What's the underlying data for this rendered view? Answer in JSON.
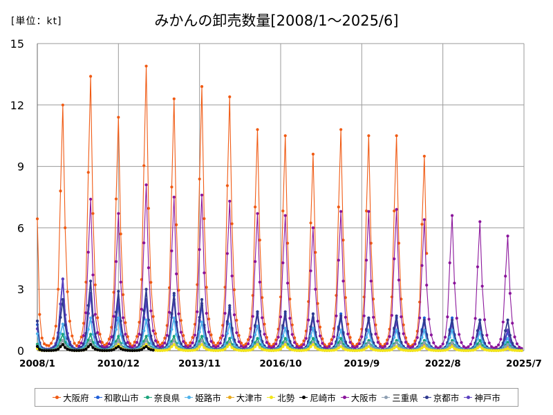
{
  "header": {
    "unit_label": "[単位：kt]",
    "title": "みかんの卸売数量[2008/1～2025/6]"
  },
  "chart_data": {
    "type": "line",
    "title": "みかんの卸売数量[2008/1～2025/6]",
    "ylabel": "[単位：kt]",
    "xlabel": "",
    "ylim": [
      0,
      15
    ],
    "yticks": [
      "0",
      "3",
      "6",
      "9",
      "12",
      "15"
    ],
    "xlim": [
      "2008/1",
      "2025/7"
    ],
    "xticks": [
      "2008/1",
      "2010/12",
      "2013/11",
      "2016/10",
      "2019/9",
      "2022/8",
      "2025/7"
    ],
    "grid": true,
    "legend_position": "bottom",
    "season_peaks": [
      "2008/12",
      "2009/12",
      "2010/12",
      "2011/12",
      "2012/12",
      "2013/12",
      "2014/12",
      "2015/12",
      "2016/12",
      "2017/12",
      "2018/12",
      "2019/12",
      "2020/12",
      "2021/12",
      "2022/12",
      "2023/12",
      "2024/12"
    ],
    "series": [
      {
        "name": "大阪府",
        "color": "#f05a13",
        "peak_values": [
          12.0,
          13.4,
          11.4,
          13.9,
          12.3,
          12.9,
          12.4,
          10.8,
          10.5,
          9.6,
          10.8,
          10.5,
          10.5,
          9.5
        ],
        "start_value": 6.2,
        "last_month": "2022/1"
      },
      {
        "name": "和歌山市",
        "color": "#1f5fd8",
        "peak_values": [
          3.5,
          2.8,
          2.3,
          2.4,
          2.7,
          2.2,
          2.1,
          1.9,
          1.8,
          1.8,
          1.8,
          1.6,
          1.6,
          1.6,
          1.6,
          1.5,
          0.9
        ],
        "start_value": 1.2,
        "last_month": "2025/6"
      },
      {
        "name": "奈良県",
        "color": "#1aa37a",
        "peak_values": [
          0.8,
          0.8,
          0.7,
          0.7,
          0.7,
          0.7,
          0.6,
          0.6,
          0.6,
          0.6,
          0.6,
          0.5,
          0.5,
          0.5,
          0.5,
          0.5,
          0.4
        ],
        "start_value": 0.3,
        "last_month": "2025/6"
      },
      {
        "name": "姫路市",
        "color": "#4db1ea",
        "peak_values": [
          1.3,
          1.6,
          1.6,
          1.5,
          1.6,
          1.4,
          1.3,
          1.2,
          1.1,
          1.1,
          1.0,
          1.0,
          1.0,
          1.0,
          1.0,
          0.9,
          0.6
        ],
        "start_value": 0.8,
        "last_month": "2025/6"
      },
      {
        "name": "大津市",
        "color": "#e8a91c",
        "peak_values": [
          0.5,
          0.5,
          0.5,
          0.5,
          0.5,
          0.5,
          0.4,
          0.4,
          0.4,
          0.4,
          0.4,
          0.4,
          0.4,
          0.3,
          0.3,
          0.3,
          0.2
        ],
        "start_value": 0.2,
        "last_month": "2025/6"
      },
      {
        "name": "北勢",
        "color": "#f2e51a",
        "peak_values": [
          0.3,
          0.3,
          0.3,
          0.3,
          0.3,
          0.3,
          0.3,
          0.3,
          0.3,
          0.3,
          0.2,
          0.2,
          0.2,
          0.2,
          0.2,
          0.2,
          0.1
        ],
        "start_value": 0.1,
        "last_month": "2025/6"
      },
      {
        "name": "尼崎市",
        "color": "#000000",
        "peak_values": [
          0.3,
          0.3,
          0.2,
          0.2
        ],
        "start_value": 0.2,
        "last_month": "2012/3"
      },
      {
        "name": "大阪市",
        "color": "#8a149b",
        "peak_values": [
          3.5,
          7.4,
          6.7,
          8.1,
          7.5,
          7.6,
          7.3,
          6.7,
          6.6,
          6.0,
          6.8,
          6.8,
          6.9,
          6.4,
          6.6,
          6.3,
          5.6
        ],
        "start_value": 1.0,
        "last_month": "2025/6"
      },
      {
        "name": "三重県",
        "color": "#8e9fb2",
        "peak_values": [
          0.5,
          0.5,
          0.5,
          0.5,
          0.5,
          0.5,
          0.4,
          0.4,
          0.4,
          0.4,
          0.4,
          0.4,
          0.4,
          0.4,
          0.4,
          0.3,
          0.3
        ],
        "start_value": 0.2,
        "last_month": "2025/6"
      },
      {
        "name": "京都市",
        "color": "#2f3a8f",
        "peak_values": [
          2.5,
          3.4,
          2.9,
          3.0,
          2.8,
          2.5,
          2.2,
          1.9,
          1.9,
          1.8,
          1.7,
          1.6,
          1.7,
          1.5,
          1.5,
          1.5,
          1.5
        ],
        "start_value": 1.4,
        "last_month": "2025/6"
      },
      {
        "name": "神戸市",
        "color": "#5a3fbf",
        "peak_values": [
          3.5,
          2.8,
          2.5,
          2.5,
          2.5,
          2.3,
          2.0,
          1.8,
          1.7,
          1.6,
          1.6,
          1.5,
          1.4,
          1.4,
          1.3,
          1.2,
          1.0
        ],
        "start_value": 1.0,
        "last_month": "2025/6"
      }
    ]
  }
}
